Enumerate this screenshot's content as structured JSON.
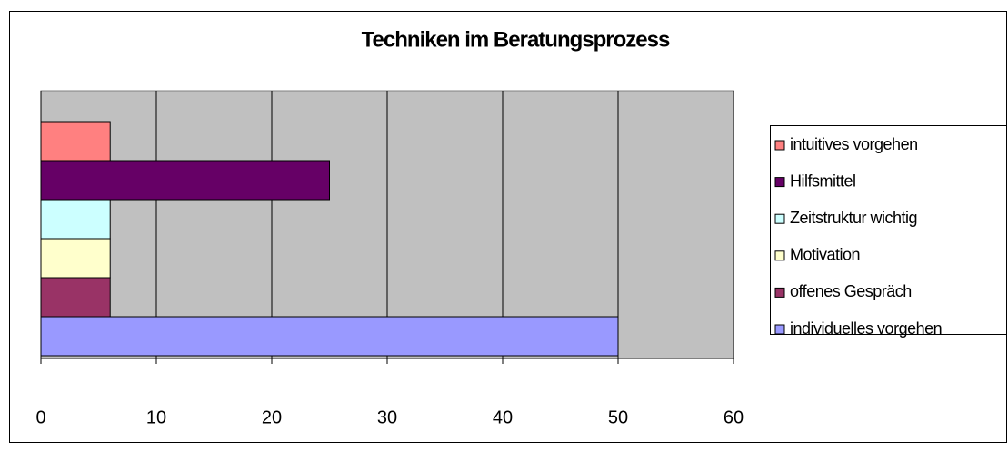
{
  "chart_data": {
    "type": "bar",
    "orientation": "horizontal",
    "title": "Techniken im Beratungsprozess",
    "categories": [
      null
    ],
    "series": [
      {
        "name": "intuitives vorgehen",
        "color": "#ff8080",
        "values": [
          6
        ]
      },
      {
        "name": "Hilfsmittel",
        "color": "#660066",
        "values": [
          25
        ]
      },
      {
        "name": "Zeitstruktur wichtig",
        "color": "#ccffff",
        "values": [
          6
        ]
      },
      {
        "name": "Motivation",
        "color": "#ffffcc",
        "values": [
          6
        ]
      },
      {
        "name": "offenes Gespräch",
        "color": "#993366",
        "values": [
          6
        ]
      },
      {
        "name": "individuelles vorgehen",
        "color": "#9999ff",
        "values": [
          50
        ]
      }
    ],
    "xlim": [
      0,
      60
    ],
    "xticks": [
      0,
      10,
      20,
      30,
      40,
      50,
      60
    ],
    "grid": true,
    "legend": "right"
  }
}
